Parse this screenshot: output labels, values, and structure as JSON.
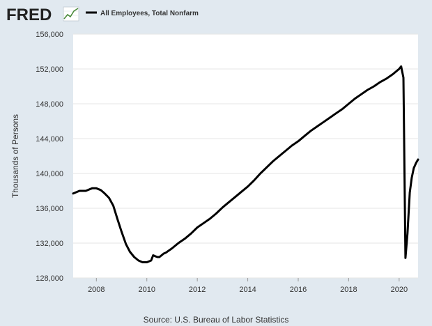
{
  "header": {
    "logo_text": "FRED",
    "legend_label": "All Employees, Total Nonfarm"
  },
  "footer": {
    "source": "Source: U.S. Bureau of Labor Statistics"
  },
  "colors": {
    "background": "#e1e9f0",
    "plot_background": "#ffffff",
    "line": "#000000",
    "gridline": "#e6e6e6",
    "logo_icon_line": "#4a8a3a"
  },
  "icons": {
    "logo_icon": "line-chart-icon"
  },
  "chart_data": {
    "type": "line",
    "title": "",
    "xlabel": "",
    "ylabel": "Thousands of Persons",
    "xlim": [
      2007.08,
      2020.75
    ],
    "ylim": [
      128000,
      156000
    ],
    "xticks": [
      2008,
      2010,
      2012,
      2014,
      2016,
      2018,
      2020
    ],
    "yticks": [
      128000,
      132000,
      136000,
      140000,
      144000,
      148000,
      152000,
      156000
    ],
    "ytick_labels": [
      "128,000",
      "132,000",
      "136,000",
      "140,000",
      "144,000",
      "148,000",
      "152,000",
      "156,000"
    ],
    "grid": true,
    "legend_position": "top-left",
    "series": [
      {
        "name": "All Employees, Total Nonfarm",
        "x": [
          2007.08,
          2007.33,
          2007.58,
          2007.83,
          2008.0,
          2008.17,
          2008.33,
          2008.5,
          2008.67,
          2008.83,
          2009.0,
          2009.17,
          2009.33,
          2009.5,
          2009.67,
          2009.83,
          2010.0,
          2010.17,
          2010.25,
          2010.33,
          2010.42,
          2010.5,
          2010.67,
          2010.75,
          2011.0,
          2011.25,
          2011.5,
          2011.75,
          2012.0,
          2012.25,
          2012.5,
          2012.75,
          2013.0,
          2013.25,
          2013.5,
          2013.75,
          2014.0,
          2014.25,
          2014.5,
          2014.75,
          2015.0,
          2015.25,
          2015.5,
          2015.75,
          2016.0,
          2016.25,
          2016.5,
          2016.75,
          2017.0,
          2017.25,
          2017.5,
          2017.75,
          2018.0,
          2018.25,
          2018.5,
          2018.75,
          2019.0,
          2019.25,
          2019.5,
          2019.75,
          2020.0,
          2020.08,
          2020.17,
          2020.25,
          2020.33,
          2020.42,
          2020.5,
          2020.58,
          2020.67,
          2020.75
        ],
        "values": [
          137700,
          138000,
          138000,
          138300,
          138300,
          138100,
          137700,
          137200,
          136300,
          134800,
          133300,
          131900,
          131000,
          130400,
          130000,
          129800,
          129800,
          130000,
          130600,
          130500,
          130400,
          130400,
          130800,
          130900,
          131400,
          132000,
          132500,
          133100,
          133800,
          134300,
          134800,
          135400,
          136100,
          136700,
          137300,
          137900,
          138500,
          139200,
          140000,
          140700,
          141400,
          142000,
          142600,
          143200,
          143700,
          144300,
          144900,
          145400,
          145900,
          146400,
          146900,
          147400,
          148000,
          148600,
          149100,
          149600,
          150000,
          150500,
          150900,
          151400,
          152000,
          152300,
          151000,
          130300,
          133100,
          137800,
          139500,
          140600,
          141200,
          141600
        ]
      }
    ]
  }
}
